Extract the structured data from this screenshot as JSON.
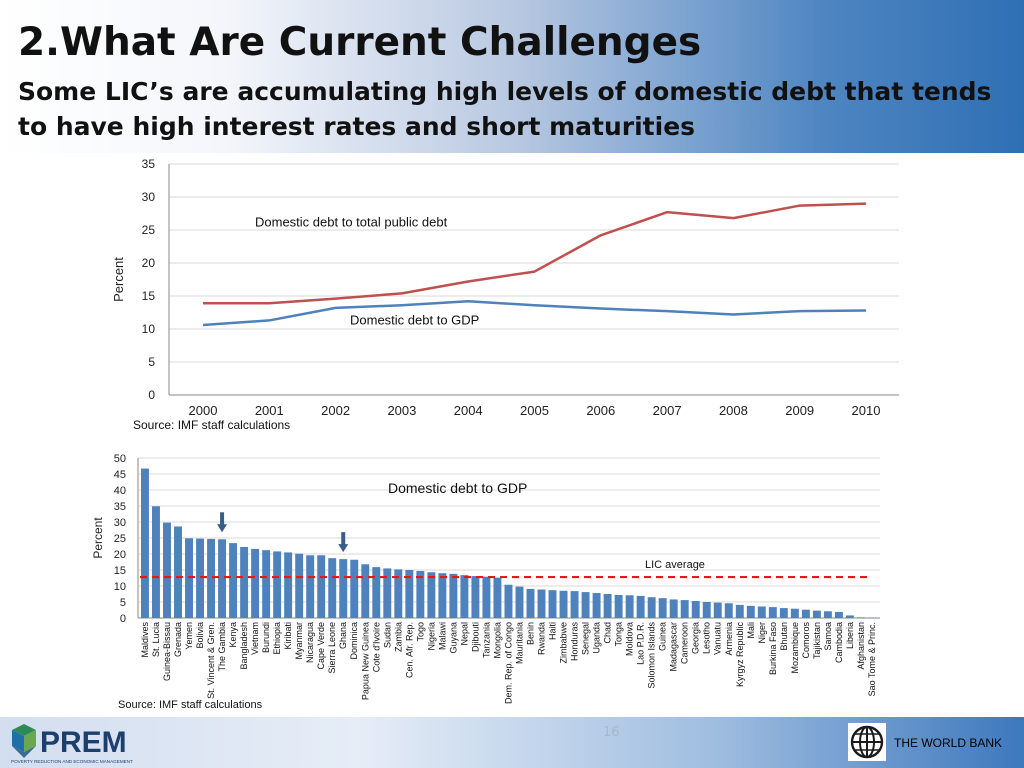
{
  "slide": {
    "title": "2.What Are Current Challenges",
    "subtitle": "Some LIC’s are accumulating high levels of domestic debt that tends to have high interest rates and short maturities",
    "page_number": "16"
  },
  "footer": {
    "prem_logo_text": "PREM",
    "prem_tagline": "POVERTY REDUCTION AND ECONOMIC MANAGEMENT",
    "world_bank": "THE WORLD BANK"
  },
  "colors": {
    "red_series": "#c0504d",
    "blue_series": "#4f81bd",
    "bar": "#4f81bd",
    "average_line": "#e31a1c",
    "marker": "#385d8a"
  },
  "chart_data": [
    {
      "type": "line",
      "x": [
        "2000",
        "2001",
        "2002",
        "2003",
        "2004",
        "2005",
        "2006",
        "2007",
        "2008",
        "2009",
        "2010"
      ],
      "series": [
        {
          "name": "Domestic debt to total public debt",
          "color": "#c0504d",
          "values": [
            13.9,
            13.9,
            14.6,
            15.4,
            17.2,
            18.7,
            24.2,
            27.7,
            26.8,
            28.7,
            29.0
          ]
        },
        {
          "name": "Domestic debt to GDP",
          "color": "#4f81bd",
          "values": [
            10.6,
            11.3,
            13.2,
            13.6,
            14.2,
            13.6,
            13.1,
            12.7,
            12.2,
            12.7,
            12.8
          ]
        }
      ],
      "ylabel": "Percent",
      "ylim": [
        0,
        35
      ],
      "yticks": [
        0,
        5,
        10,
        15,
        20,
        25,
        30,
        35
      ],
      "grid": true,
      "source": "Source: IMF staff calculations"
    },
    {
      "type": "bar",
      "title": "Domestic debt to GDP",
      "categories": [
        "Maldives",
        "St. Lucia",
        "Guinea-Bissau",
        "Grenada",
        "Yemen",
        "Bolivia",
        "St. Vincent & Gren.",
        "The Gambia",
        "Kenya",
        "Bangladesh",
        "Vietnam",
        "Burundi",
        "Ethiopia",
        "Kiribati",
        "Myanmar",
        "Nicaragua",
        "Cape Verde",
        "Sierra Leone",
        "Ghana",
        "Dominica",
        "Papua New Guinea",
        "Cote d'Ivoire",
        "Sudan",
        "Zambia",
        "Cen. Afr. Rep.",
        "Togo",
        "Nigeria",
        "Malawi",
        "Guyana",
        "Nepal",
        "Djibouti",
        "Tanzania",
        "Mongolia",
        "Dem. Rep. of Congo",
        "Mauritania",
        "Benin",
        "Rwanda",
        "Haiti",
        "Zimbabwe",
        "Honduras",
        "Senegal",
        "Uganda",
        "Chad",
        "Tonga",
        "Moldova",
        "Lao P.D.R.",
        "Solomon Islands",
        "Guinea",
        "Madagascar",
        "Cameroon",
        "Georgia",
        "Lesotho",
        "Vanuatu",
        "Armenia",
        "Kyrgyz Republic",
        "Mali",
        "Niger",
        "Burkina Faso",
        "Bhutan",
        "Mozambique",
        "Comoros",
        "Tajikistan",
        "Samoa",
        "Cambodia",
        "Liberia",
        "Afghanistan",
        "Sao Tome & Princ."
      ],
      "values": [
        46.7,
        34.9,
        29.8,
        28.6,
        24.9,
        24.8,
        24.7,
        24.6,
        23.4,
        22.2,
        21.6,
        21.2,
        20.8,
        20.5,
        20.1,
        19.6,
        19.6,
        18.7,
        18.4,
        18.2,
        16.8,
        15.9,
        15.5,
        15.2,
        15.0,
        14.7,
        14.3,
        14.0,
        13.8,
        13.4,
        13.1,
        12.9,
        12.6,
        10.4,
        9.8,
        9.1,
        8.9,
        8.7,
        8.5,
        8.4,
        8.1,
        7.8,
        7.5,
        7.2,
        7.1,
        6.9,
        6.5,
        6.2,
        5.8,
        5.6,
        5.3,
        5.0,
        4.8,
        4.6,
        4.1,
        3.8,
        3.6,
        3.4,
        3.1,
        2.9,
        2.6,
        2.3,
        2.1,
        1.9,
        0.8,
        0.2,
        0.1
      ],
      "average": {
        "label": "LIC average",
        "value": 12.8
      },
      "markers": [
        "The Gambia",
        "Ghana"
      ],
      "ylabel": "Percent",
      "ylim": [
        0,
        50
      ],
      "yticks": [
        0,
        5,
        10,
        15,
        20,
        25,
        30,
        35,
        40,
        45,
        50
      ],
      "grid": true,
      "source": "Source: IMF staff calculations"
    }
  ]
}
